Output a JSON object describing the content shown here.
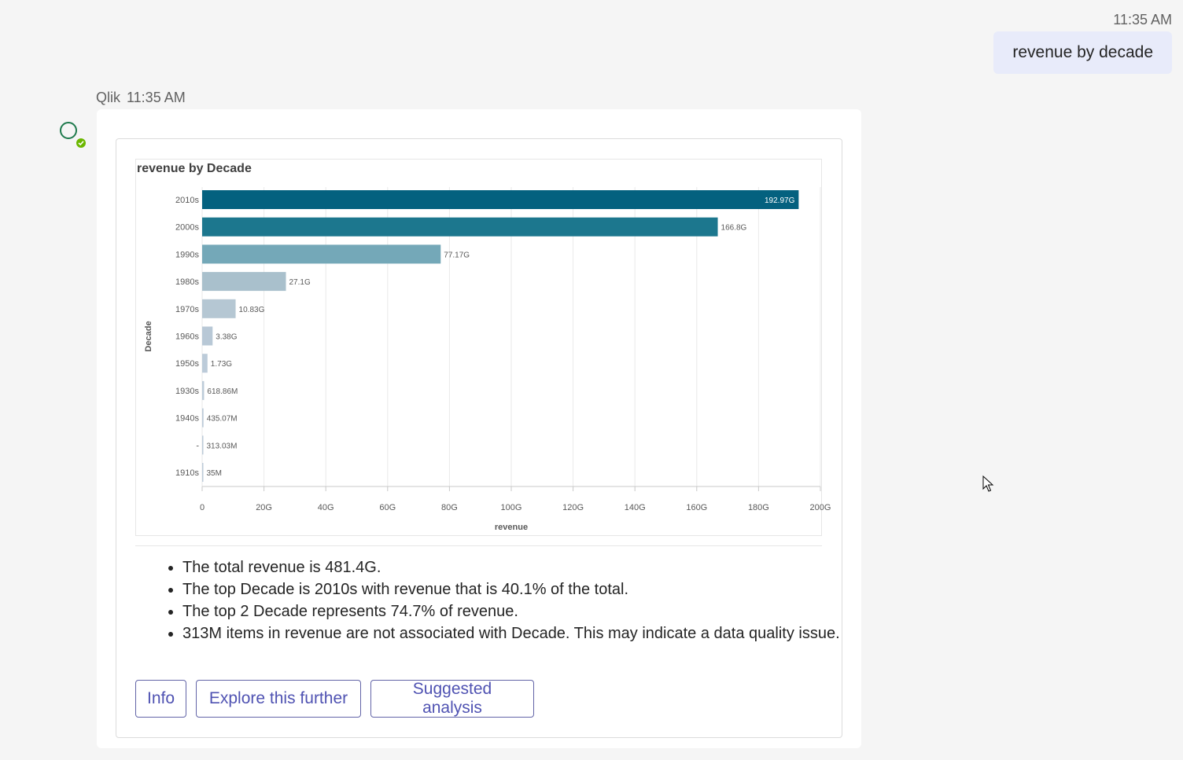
{
  "user_message": {
    "time": "11:35 AM",
    "text": "revenue by decade"
  },
  "bot_message": {
    "sender": "Qlik",
    "time": "11:35 AM"
  },
  "chart_data": {
    "type": "bar",
    "orientation": "horizontal",
    "title": "revenue by Decade",
    "xlabel": "revenue",
    "ylabel": "Decade",
    "xlim": [
      0,
      200
    ],
    "xticks": [
      "0",
      "20G",
      "40G",
      "60G",
      "80G",
      "100G",
      "120G",
      "140G",
      "160G",
      "180G",
      "200G"
    ],
    "categories": [
      "2010s",
      "2000s",
      "1990s",
      "1980s",
      "1970s",
      "1960s",
      "1950s",
      "1930s",
      "1940s",
      "-",
      "1910s"
    ],
    "values": [
      192.97,
      166.8,
      77.17,
      27.1,
      10.83,
      3.38,
      1.73,
      0.61886,
      0.43507,
      0.31303,
      0.035
    ],
    "labels": [
      "192.97G",
      "166.8G",
      "77.17G",
      "27.1G",
      "10.83G",
      "3.38G",
      "1.73G",
      "618.86M",
      "435.07M",
      "313.03M",
      "35M"
    ],
    "colors": [
      "#04617f",
      "#1c778e",
      "#74a8b8",
      "#a9c0cc",
      "#b5c7d3",
      "#b8c8d6",
      "#bccbd9",
      "#bccbd9",
      "#bccbd9",
      "#bccbd9",
      "#bccbd9"
    ],
    "grid": true
  },
  "insights": [
    "The total revenue is 481.4G.",
    "The top Decade is 2010s with revenue that is 40.1% of the total.",
    "The top 2 Decade represents 74.7% of revenue.",
    "313M items in revenue are not associated with Decade. This may indicate a data quality issue."
  ],
  "actions": {
    "info": "Info",
    "explore": "Explore this further",
    "suggested": "Suggested analysis"
  },
  "icons": {
    "avatar": "bot-avatar-icon",
    "presence": "presence-available-icon",
    "cursor": "mouse-pointer-icon"
  }
}
